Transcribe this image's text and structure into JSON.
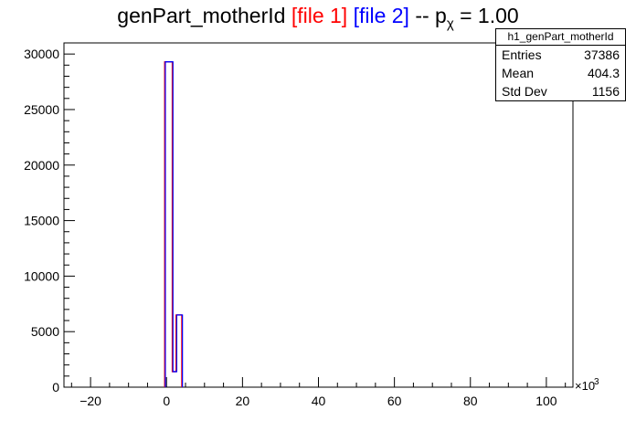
{
  "title": {
    "main": "genPart_motherId",
    "file1": "[file 1]",
    "file2": "[file 2]",
    "sep": "-- p",
    "chi": "χ",
    "pval": "= 1.00"
  },
  "stats": {
    "name": "h1_genPart_motherId",
    "rows": [
      {
        "label": "Entries",
        "value": "37386"
      },
      {
        "label": "Mean",
        "value": "404.3"
      },
      {
        "label": "Std Dev",
        "value": "1156"
      }
    ]
  },
  "chart_data": {
    "type": "histogram",
    "x_scale_label": "×10",
    "x_scale_exponent": "3",
    "xlim": [
      -27,
      107
    ],
    "ylim": [
      0,
      31000
    ],
    "x_ticks": [
      -20,
      0,
      20,
      40,
      60,
      80,
      100
    ],
    "x_tick_labels": [
      "−20",
      "0",
      "20",
      "40",
      "60",
      "80",
      "100"
    ],
    "y_ticks": [
      0,
      5000,
      10000,
      15000,
      20000,
      25000,
      30000
    ],
    "y_tick_labels": [
      "0",
      "5000",
      "10000",
      "15000",
      "20000",
      "25000",
      "30000"
    ],
    "colors": {
      "file1": "#ff0000",
      "file2": "#0000ff"
    },
    "series": [
      {
        "name": "file 1",
        "color": "#ff0000",
        "bins": [
          {
            "x0": -0.5,
            "x1": 1.5,
            "y": 29300
          },
          {
            "x0": 1.5,
            "x1": 2.5,
            "y": 1400
          },
          {
            "x0": 2.5,
            "x1": 4.0,
            "y": 6500
          }
        ]
      },
      {
        "name": "file 2",
        "color": "#0000ff",
        "bins": [
          {
            "x0": -0.5,
            "x1": 1.5,
            "y": 29300
          },
          {
            "x0": 1.5,
            "x1": 2.5,
            "y": 1400
          },
          {
            "x0": 2.5,
            "x1": 4.0,
            "y": 6500
          }
        ]
      }
    ]
  }
}
